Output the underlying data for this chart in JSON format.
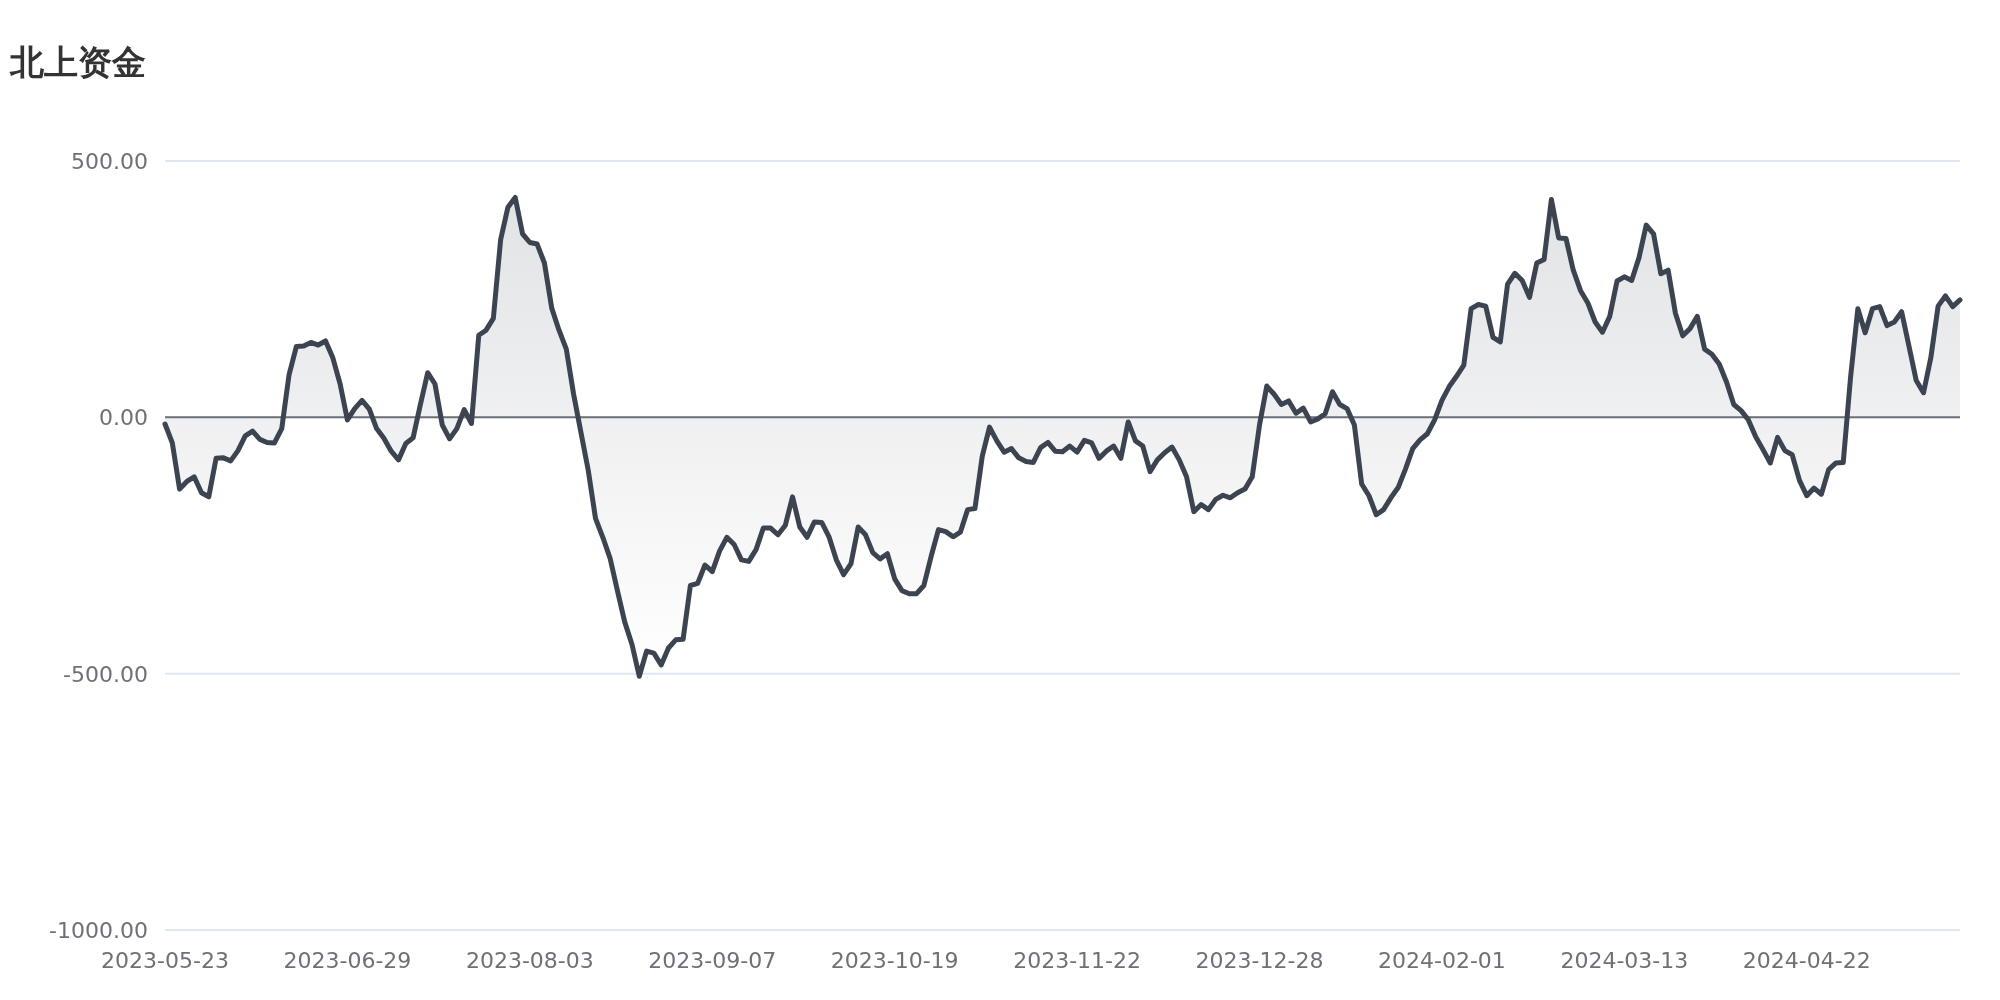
{
  "chart_data": {
    "type": "area",
    "title": "北上资金",
    "categories": [
      "2023-05-23",
      null,
      null,
      null,
      null,
      null,
      null,
      null,
      null,
      null,
      null,
      null,
      null,
      null,
      null,
      null,
      null,
      null,
      null,
      null,
      null,
      null,
      null,
      null,
      null,
      "2023-06-29",
      null,
      null,
      null,
      null,
      null,
      null,
      null,
      null,
      null,
      null,
      null,
      null,
      null,
      null,
      null,
      null,
      null,
      null,
      null,
      null,
      null,
      null,
      null,
      null,
      "2023-08-03",
      null,
      null,
      null,
      null,
      null,
      null,
      null,
      null,
      null,
      null,
      null,
      null,
      null,
      null,
      null,
      null,
      null,
      null,
      null,
      null,
      null,
      null,
      null,
      null,
      "2023-09-07",
      null,
      null,
      null,
      null,
      null,
      null,
      null,
      null,
      null,
      null,
      null,
      null,
      null,
      null,
      null,
      null,
      null,
      null,
      null,
      null,
      null,
      null,
      null,
      null,
      "2023-10-19",
      null,
      null,
      null,
      null,
      null,
      null,
      null,
      null,
      null,
      null,
      null,
      null,
      null,
      null,
      null,
      null,
      null,
      null,
      null,
      null,
      null,
      null,
      null,
      null,
      "2023-11-22",
      null,
      null,
      null,
      null,
      null,
      null,
      null,
      null,
      null,
      null,
      null,
      null,
      null,
      null,
      null,
      null,
      null,
      null,
      null,
      null,
      null,
      null,
      null,
      null,
      "2023-12-28",
      null,
      null,
      null,
      null,
      null,
      null,
      null,
      null,
      null,
      null,
      null,
      null,
      null,
      null,
      null,
      null,
      null,
      null,
      null,
      null,
      null,
      null,
      null,
      null,
      "2024-02-01",
      null,
      null,
      null,
      null,
      null,
      null,
      null,
      null,
      null,
      null,
      null,
      null,
      null,
      null,
      null,
      null,
      null,
      null,
      null,
      null,
      null,
      null,
      null,
      null,
      "2024-03-13",
      null,
      null,
      null,
      null,
      null,
      null,
      null,
      null,
      null,
      null,
      null,
      null,
      null,
      null,
      null,
      null,
      null,
      null,
      null,
      null,
      null,
      null,
      null,
      null,
      "2024-04-22",
      null,
      null,
      null,
      null,
      null,
      null,
      null,
      null,
      null,
      null,
      null,
      null,
      null,
      null,
      null,
      null,
      null,
      null,
      null,
      null,
      null
    ],
    "values": [
      -13,
      -50,
      -140,
      -125,
      -116,
      -147,
      -155,
      -80,
      -79,
      -85,
      -65,
      -36,
      -27,
      -43,
      -49,
      -50,
      -22,
      83,
      138,
      139,
      146,
      141,
      149,
      116,
      65,
      -5,
      17,
      33,
      16,
      -22,
      -41,
      -66,
      -83,
      -51,
      -40,
      25,
      87,
      65,
      -15,
      -42,
      -22,
      15,
      -12,
      160,
      170,
      193,
      347,
      410,
      429,
      358,
      341,
      338,
      301,
      213,
      170,
      133,
      45,
      -29,
      -103,
      -197,
      -234,
      -275,
      -338,
      -399,
      -443,
      -505,
      -456,
      -460,
      -483,
      -450,
      -434,
      -433,
      -328,
      -324,
      -288,
      -301,
      -261,
      -234,
      -248,
      -278,
      -281,
      -258,
      -216,
      -216,
      -229,
      -211,
      -155,
      -214,
      -234,
      -204,
      -205,
      -233,
      -278,
      -307,
      -286,
      -214,
      -229,
      -264,
      -276,
      -266,
      -315,
      -338,
      -344,
      -344,
      -328,
      -271,
      -219,
      -223,
      -233,
      -224,
      -180,
      -178,
      -76,
      -19,
      -46,
      -68,
      -61,
      -79,
      -86,
      -88,
      -59,
      -49,
      -66,
      -67,
      -56,
      -68,
      -45,
      -50,
      -80,
      -66,
      -56,
      -80,
      -9,
      -46,
      -56,
      -106,
      -83,
      -69,
      -58,
      -83,
      -116,
      -184,
      -170,
      -180,
      -160,
      -152,
      -157,
      -147,
      -140,
      -116,
      -15,
      61,
      45,
      25,
      32,
      8,
      18,
      -9,
      -3,
      7,
      50,
      25,
      17,
      -15,
      -130,
      -153,
      -190,
      -180,
      -157,
      -137,
      -101,
      -61,
      -44,
      -32,
      -5,
      33,
      60,
      80,
      102,
      212,
      220,
      217,
      156,
      147,
      260,
      281,
      267,
      234,
      301,
      308,
      425,
      350,
      349,
      287,
      247,
      223,
      186,
      166,
      197,
      266,
      274,
      267,
      311,
      375,
      358,
      280,
      287,
      203,
      159,
      173,
      197,
      133,
      123,
      104,
      69,
      25,
      13,
      -5,
      -38,
      -63,
      -89,
      -39,
      -65,
      -73,
      -123,
      -153,
      -138,
      -150,
      -102,
      -89,
      -88,
      78,
      212,
      165,
      212,
      216,
      179,
      186,
      206,
      139,
      72,
      48,
      116,
      217,
      237,
      216,
      229
    ],
    "color": "#3b4450",
    "ylim": [
      -1000,
      500
    ],
    "yticks": [
      {
        "value": -1000,
        "label": "-1000.00"
      },
      {
        "value": -500,
        "label": "-500.00"
      },
      {
        "value": 0,
        "label": "0.00"
      },
      {
        "value": 500,
        "label": "500.00"
      }
    ],
    "grid": "y"
  }
}
